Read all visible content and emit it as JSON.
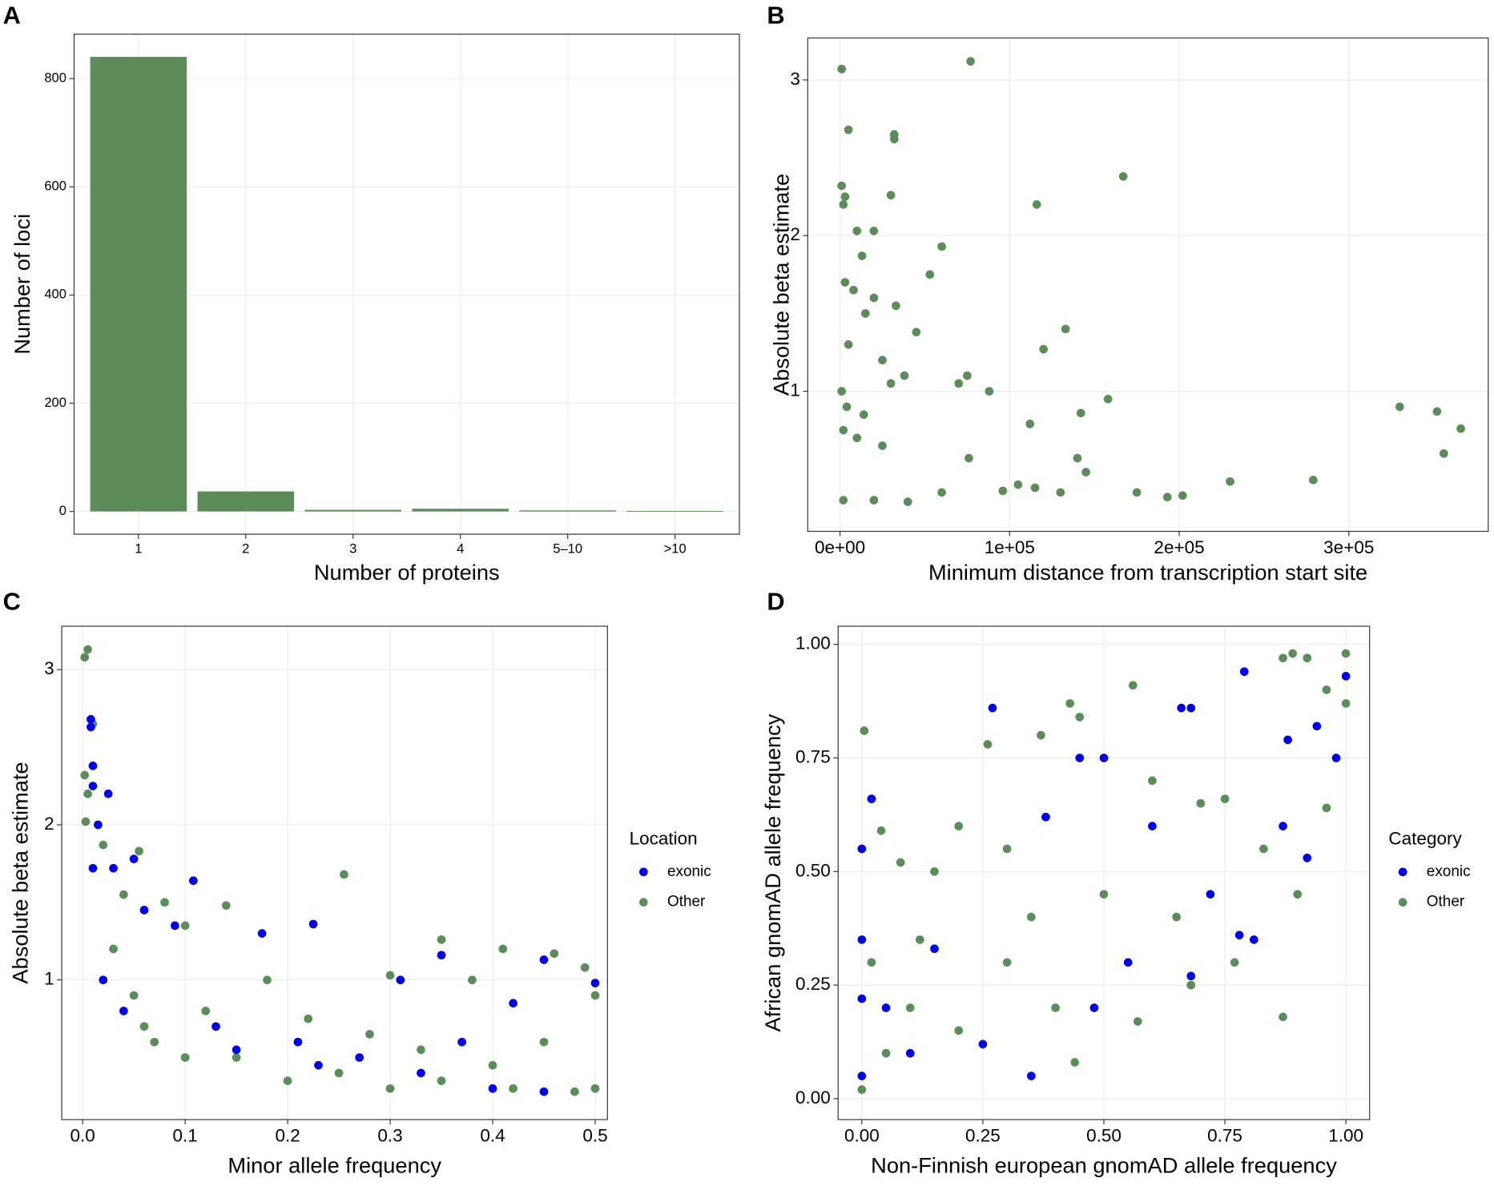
{
  "chart_data": [
    {
      "type": "bar",
      "title": "A",
      "xlabel": "Number of proteins",
      "ylabel": "Number of loci",
      "categories": [
        "1",
        "2",
        "3",
        "4",
        "5–10",
        ">10"
      ],
      "values": [
        840,
        37,
        3,
        5,
        2,
        1
      ],
      "color": "#5b8c5a",
      "ylim": [
        -42,
        882
      ],
      "yticks": [
        0,
        200,
        400,
        600,
        800
      ],
      "grid": true
    },
    {
      "type": "scatter",
      "title": "B",
      "xlabel": "Minimum distance from transcription start site",
      "ylabel": "Absolute beta estimate",
      "color": "#5b8c5a",
      "x": [
        1000,
        77000,
        5000,
        32000,
        32000,
        30000,
        1000,
        3000,
        2000,
        167000,
        116000,
        10000,
        20000,
        60000,
        13000,
        53000,
        33000,
        3000,
        8000,
        20000,
        15000,
        45000,
        133000,
        120000,
        5000,
        25000,
        38000,
        75000,
        70000,
        88000,
        30000,
        1000,
        4000,
        14000,
        158000,
        142000,
        112000,
        330000,
        352000,
        366000,
        356000,
        2000,
        10000,
        25000,
        140000,
        76000,
        145000,
        60000,
        20000,
        175000,
        193000,
        202000,
        230000,
        279000,
        130000,
        115000,
        2000,
        40000,
        96000,
        105000
      ],
      "y": [
        3.07,
        3.12,
        2.68,
        2.65,
        2.62,
        2.26,
        2.32,
        2.25,
        2.2,
        2.38,
        2.2,
        2.03,
        2.03,
        1.93,
        1.87,
        1.75,
        1.55,
        1.7,
        1.65,
        1.6,
        1.5,
        1.38,
        1.4,
        1.27,
        1.3,
        1.2,
        1.1,
        1.1,
        1.05,
        1.0,
        1.05,
        1.0,
        0.9,
        0.85,
        0.95,
        0.86,
        0.79,
        0.9,
        0.87,
        0.76,
        0.6,
        0.75,
        0.7,
        0.65,
        0.57,
        0.57,
        0.48,
        0.35,
        0.3,
        0.35,
        0.32,
        0.33,
        0.42,
        0.43,
        0.35,
        0.38,
        0.3,
        0.29,
        0.36,
        0.4
      ],
      "xlim": [
        -19000,
        382200
      ],
      "ylim": [
        0.1,
        3.27
      ],
      "xticks": [
        {
          "value": 0,
          "label": "0e+00"
        },
        {
          "value": 100000,
          "label": "1e+05"
        },
        {
          "value": 200000,
          "label": "2e+05"
        },
        {
          "value": 300000,
          "label": "3e+05"
        }
      ],
      "yticks": [
        1,
        2,
        3
      ],
      "grid": true
    },
    {
      "type": "scatter",
      "title": "C",
      "xlabel": "Minor allele frequency",
      "ylabel": "Absolute beta estimate",
      "legend_title": "Location",
      "series": [
        {
          "name": "exonic",
          "color": "#0000e6",
          "x": [
            0.008,
            0.008,
            0.01,
            0.01,
            0.025,
            0.015,
            0.01,
            0.03,
            0.108,
            0.05,
            0.06,
            0.09,
            0.175,
            0.225,
            0.35,
            0.45,
            0.5,
            0.42,
            0.31,
            0.02,
            0.04,
            0.13,
            0.21,
            0.27,
            0.33,
            0.4,
            0.45,
            0.15,
            0.23,
            0.37
          ],
          "y": [
            2.68,
            2.63,
            2.38,
            2.25,
            2.2,
            2.0,
            1.72,
            1.72,
            1.64,
            1.78,
            1.45,
            1.35,
            1.3,
            1.36,
            1.16,
            1.13,
            0.98,
            0.85,
            1.0,
            1.0,
            0.8,
            0.7,
            0.6,
            0.5,
            0.4,
            0.3,
            0.28,
            0.55,
            0.45,
            0.6
          ]
        },
        {
          "name": "Other",
          "color": "#5b8c5a",
          "x": [
            0.002,
            0.005,
            0.01,
            0.002,
            0.005,
            0.003,
            0.02,
            0.055,
            0.255,
            0.04,
            0.08,
            0.14,
            0.1,
            0.35,
            0.41,
            0.46,
            0.49,
            0.18,
            0.3,
            0.38,
            0.05,
            0.12,
            0.22,
            0.28,
            0.33,
            0.45,
            0.5,
            0.15,
            0.25,
            0.35,
            0.42,
            0.48,
            0.2,
            0.07,
            0.03,
            0.06,
            0.1,
            0.3,
            0.4,
            0.5
          ],
          "y": [
            3.08,
            3.13,
            2.65,
            2.32,
            2.2,
            2.02,
            1.87,
            1.83,
            1.68,
            1.55,
            1.5,
            1.48,
            1.35,
            1.26,
            1.2,
            1.17,
            1.08,
            1.0,
            1.03,
            1.0,
            0.9,
            0.8,
            0.75,
            0.65,
            0.55,
            0.6,
            0.9,
            0.5,
            0.4,
            0.35,
            0.3,
            0.28,
            0.35,
            0.6,
            1.2,
            0.7,
            0.5,
            0.3,
            0.45,
            0.3
          ]
        }
      ],
      "xlim": [
        -0.0204,
        0.512
      ],
      "ylim": [
        0.1,
        3.28
      ],
      "xticks": [
        {
          "value": 0,
          "label": "0.0"
        },
        0.1,
        0.2,
        0.3,
        0.4,
        0.5
      ],
      "yticks": [
        1,
        2,
        3
      ],
      "grid": true
    },
    {
      "type": "scatter",
      "title": "D",
      "xlabel": "Non-Finnish european gnomAD allele frequency",
      "ylabel": "African gnomAD allele frequency",
      "legend_title": "Category",
      "series": [
        {
          "name": "exonic",
          "color": "#0000e6",
          "x": [
            0.0,
            0.02,
            0.27,
            0.66,
            0.68,
            0.79,
            1.0,
            0.88,
            0.94,
            0.98,
            0.45,
            0.5,
            0.38,
            0.6,
            0.87,
            0.92,
            0.0,
            0.0,
            0.0,
            0.05,
            0.15,
            0.25,
            0.35,
            0.55,
            0.68,
            0.78,
            0.81,
            0.72,
            0.1,
            0.48
          ],
          "y": [
            0.55,
            0.66,
            0.86,
            0.86,
            0.86,
            0.94,
            0.93,
            0.79,
            0.82,
            0.75,
            0.75,
            0.75,
            0.62,
            0.6,
            0.6,
            0.53,
            0.35,
            0.22,
            0.05,
            0.2,
            0.33,
            0.12,
            0.05,
            0.3,
            0.27,
            0.36,
            0.35,
            0.45,
            0.1,
            0.2
          ]
        },
        {
          "name": "Other",
          "color": "#5b8c5a",
          "x": [
            0.005,
            0.56,
            0.43,
            0.87,
            0.89,
            0.92,
            1.0,
            1.0,
            0.96,
            0.26,
            0.37,
            0.45,
            0.02,
            0.04,
            0.08,
            0.15,
            0.2,
            0.3,
            0.6,
            0.7,
            0.75,
            0.83,
            0.9,
            0.96,
            0.87,
            0.57,
            0.44,
            0.68,
            0.3,
            0.1,
            0.05,
            0.2,
            0.35,
            0.5,
            0.65,
            0.0,
            0.02,
            0.12,
            0.4,
            0.77
          ],
          "y": [
            0.81,
            0.91,
            0.87,
            0.97,
            0.98,
            0.97,
            0.98,
            0.87,
            0.9,
            0.78,
            0.8,
            0.84,
            0.66,
            0.59,
            0.52,
            0.5,
            0.6,
            0.55,
            0.7,
            0.65,
            0.66,
            0.55,
            0.45,
            0.64,
            0.18,
            0.17,
            0.08,
            0.25,
            0.3,
            0.2,
            0.1,
            0.15,
            0.4,
            0.45,
            0.4,
            0.02,
            0.3,
            0.35,
            0.2,
            0.3
          ]
        }
      ],
      "xlim": [
        -0.049,
        1.049
      ],
      "ylim": [
        -0.046,
        1.04
      ],
      "xticks": [
        {
          "value": 0,
          "label": "0.00"
        },
        {
          "value": 0.25,
          "label": "0.25"
        },
        {
          "value": 0.5,
          "label": "0.50"
        },
        {
          "value": 0.75,
          "label": "0.75"
        },
        {
          "value": 1,
          "label": "1.00"
        }
      ],
      "yticks": [
        {
          "value": 0,
          "label": "0.00"
        },
        {
          "value": 0.25,
          "label": "0.25"
        },
        {
          "value": 0.5,
          "label": "0.50"
        },
        {
          "value": 0.75,
          "label": "0.75"
        },
        {
          "value": 1,
          "label": "1.00"
        }
      ],
      "grid": true
    }
  ]
}
